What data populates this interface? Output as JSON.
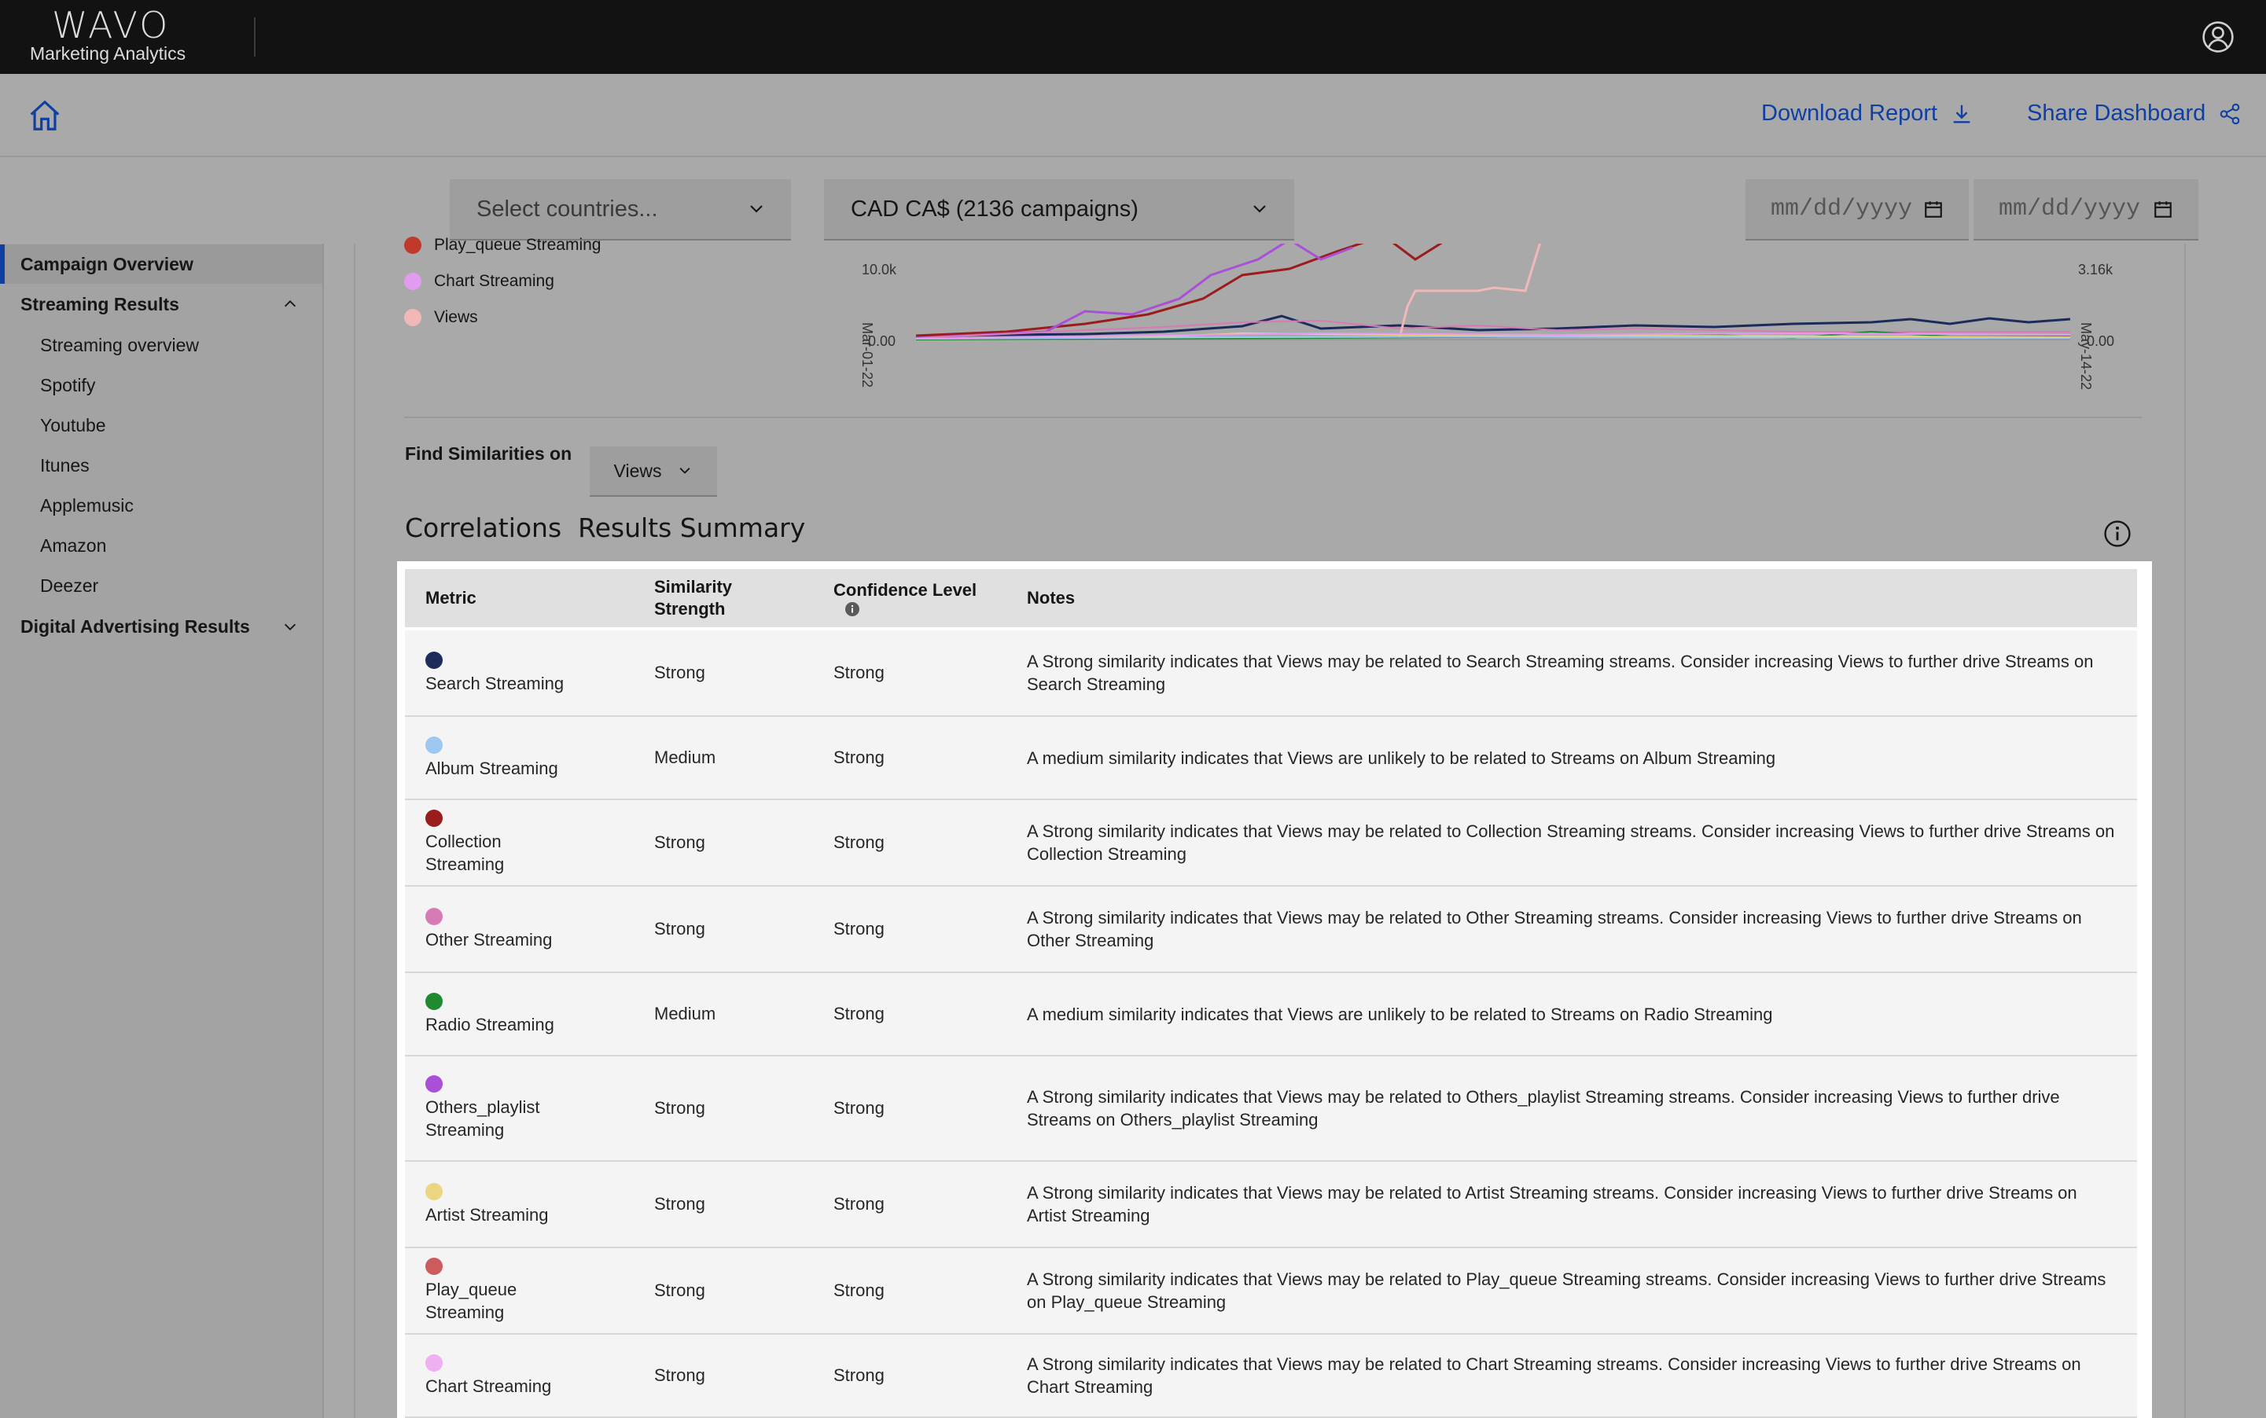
{
  "app": {
    "logo": "WAVO",
    "subtitle": "Marketing Analytics"
  },
  "header": {
    "download_label": "Download Report",
    "share_label": "Share Dashboard"
  },
  "filters": {
    "countries_placeholder": "Select countries...",
    "currency_value": "CAD CA$ (2136 campaigns)",
    "start_date_placeholder": "mm/dd/yyyy",
    "end_date_placeholder": "mm/dd/yyyy"
  },
  "sidebar": {
    "items": [
      {
        "label": "Campaign Overview"
      },
      {
        "label": "Streaming Results"
      },
      {
        "label": "Streaming overview"
      },
      {
        "label": "Spotify"
      },
      {
        "label": "Youtube"
      },
      {
        "label": "Itunes"
      },
      {
        "label": "Applemusic"
      },
      {
        "label": "Amazon"
      },
      {
        "label": "Deezer"
      },
      {
        "label": "Digital Advertising Results"
      }
    ]
  },
  "chart": {
    "legend": [
      {
        "label": "Play_queue Streaming",
        "color": "#c0392b"
      },
      {
        "label": "Chart Streaming",
        "color": "#e39bf0"
      },
      {
        "label": "Views",
        "color": "#f2b8b8"
      }
    ],
    "y_left_ticks": [
      "10.0k",
      "0.00"
    ],
    "y_right_ticks": [
      "3.16k",
      "0.00"
    ],
    "x_start": "Mar-01-22",
    "x_end": "May-14-22"
  },
  "similarity": {
    "label": "Find Similarities on",
    "selected": "Views"
  },
  "summary": {
    "title": "Correlations  Results Summary",
    "columns": {
      "metric": "Metric",
      "strength": "Similarity Strength",
      "confidence": "Confidence Level",
      "notes": "Notes"
    },
    "rows": [
      {
        "metric": "Search Streaming",
        "color": "#1c2b5a",
        "strength": "Strong",
        "confidence": "Strong",
        "notes": "A Strong similarity indicates that Views may be related to Search Streaming streams. Consider increasing Views to further drive Streams on Search Streaming"
      },
      {
        "metric": "Album Streaming",
        "color": "#9cc8f2",
        "strength": "Medium",
        "confidence": "Strong",
        "notes": "A medium similarity indicates that Views are unlikely to be related to Streams on Album Streaming"
      },
      {
        "metric": "Collection Streaming",
        "color": "#9b1c1c",
        "strength": "Strong",
        "confidence": "Strong",
        "notes": "A Strong similarity indicates that Views may be related to Collection Streaming streams. Consider increasing Views to further drive Streams on Collection Streaming"
      },
      {
        "metric": "Other Streaming",
        "color": "#d77bb6",
        "strength": "Strong",
        "confidence": "Strong",
        "notes": "A Strong similarity indicates that Views may be related to Other Streaming streams. Consider increasing Views to further drive Streams on Other Streaming"
      },
      {
        "metric": "Radio Streaming",
        "color": "#1f8a2f",
        "strength": "Medium",
        "confidence": "Strong",
        "notes": "A medium similarity indicates that Views are unlikely to be related to Streams on Radio Streaming"
      },
      {
        "metric": "Others_playlist Streaming",
        "color": "#a94fd8",
        "strength": "Strong",
        "confidence": "Strong",
        "notes": "A Strong similarity indicates that Views may be related to Others_playlist Streaming streams. Consider increasing Views to further drive Streams on Others_playlist Streaming"
      },
      {
        "metric": "Artist Streaming",
        "color": "#ecd580",
        "strength": "Strong",
        "confidence": "Strong",
        "notes": "A Strong similarity indicates that Views may be related to Artist Streaming streams. Consider increasing Views to further drive Streams on Artist Streaming"
      },
      {
        "metric": "Play_queue Streaming",
        "color": "#cc5b5b",
        "strength": "Strong",
        "confidence": "Strong",
        "notes": "A Strong similarity indicates that Views may be related to Play_queue Streaming streams. Consider increasing Views to further drive Streams on Play_queue Streaming"
      },
      {
        "metric": "Chart Streaming",
        "color": "#eeb0f2",
        "strength": "Strong",
        "confidence": "Strong",
        "notes": "A Strong similarity indicates that Views may be related to Chart Streaming streams. Consider increasing Views to further drive Streams on Chart Streaming"
      }
    ]
  }
}
